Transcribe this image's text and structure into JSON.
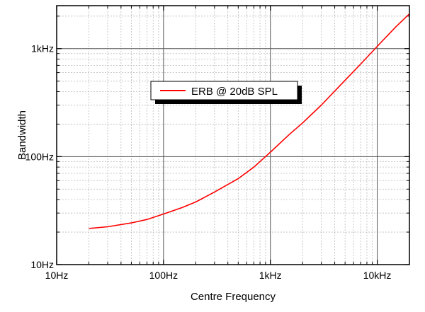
{
  "chart_data": {
    "type": "line",
    "title": "",
    "xlabel": "Centre Frequency",
    "ylabel": "Bandwidth",
    "x_scale": "log",
    "y_scale": "log",
    "xlim": [
      10,
      20000
    ],
    "ylim": [
      10,
      2500
    ],
    "x_ticks": [
      {
        "value": 10,
        "label": "10Hz"
      },
      {
        "value": 100,
        "label": "100Hz"
      },
      {
        "value": 1000,
        "label": "1kHz"
      },
      {
        "value": 10000,
        "label": "10kHz"
      }
    ],
    "y_ticks": [
      {
        "value": 10,
        "label": "10Hz"
      },
      {
        "value": 100,
        "label": "100Hz"
      },
      {
        "value": 1000,
        "label": "1kHz"
      }
    ],
    "grid": true,
    "legend_position": "upper-center",
    "series": [
      {
        "name": "ERB @ 20dB SPL",
        "color": "#ff0000",
        "x": [
          20,
          30,
          50,
          70,
          100,
          150,
          200,
          300,
          500,
          700,
          1000,
          1500,
          2000,
          3000,
          5000,
          7000,
          10000,
          15000,
          20000
        ],
        "y": [
          21.6,
          22.4,
          24.3,
          26.2,
          29.4,
          33.8,
          38.0,
          47.0,
          62.5,
          80.0,
          110,
          160,
          205,
          300,
          510,
          720,
          1050,
          1600,
          2100
        ]
      }
    ]
  }
}
